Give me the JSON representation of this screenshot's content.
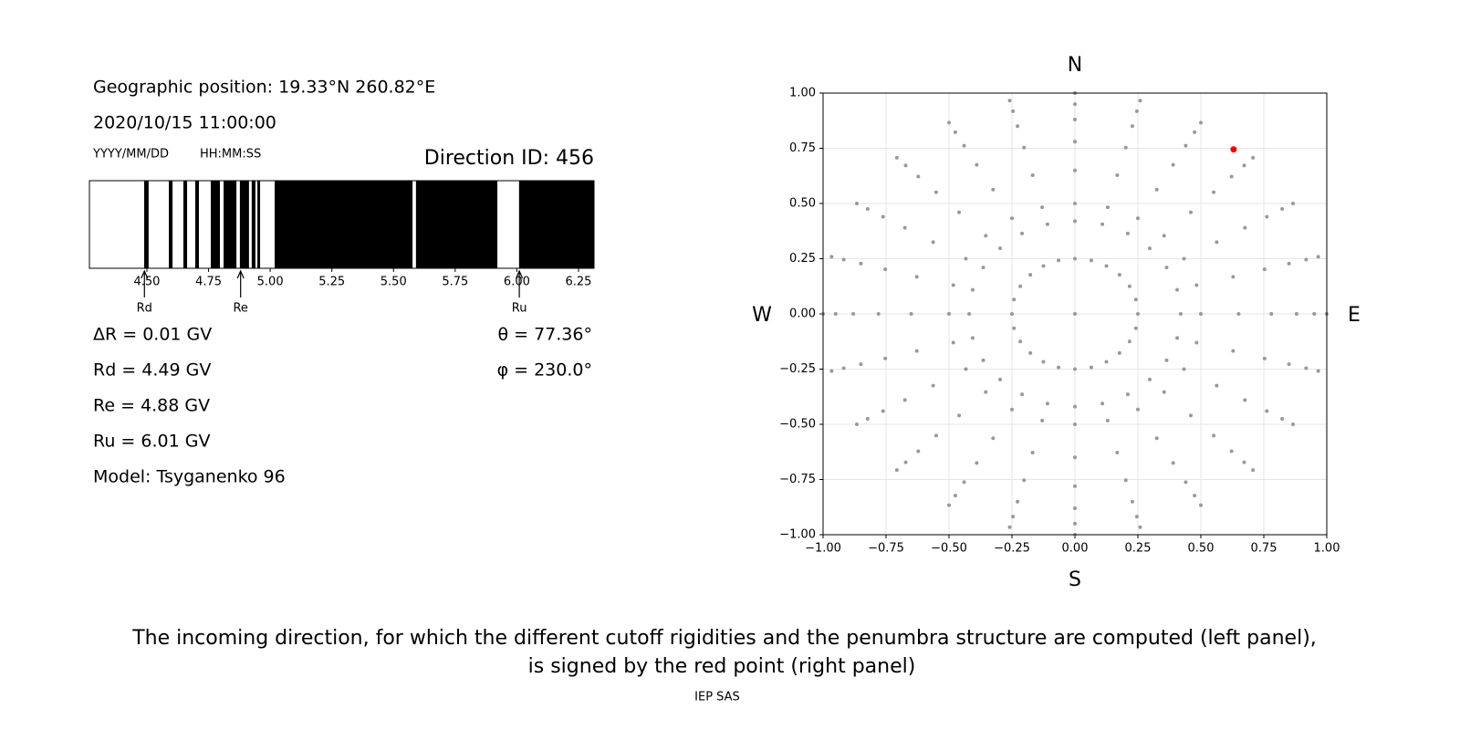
{
  "info": {
    "position": "Geographic position: 19.33°N 260.82°E",
    "datetime": "2020/10/15 11:00:00",
    "date_format": "YYYY/MM/DD",
    "time_format": "HH:MM:SS",
    "direction_id": "Direction ID: 456",
    "results": [
      "ΔR = 0.01 GV",
      "Rd = 4.49 GV",
      "Re = 4.88 GV",
      "Ru = 6.01 GV",
      "Model: Tsyganenko 96"
    ],
    "angles": [
      "θ = 77.36°",
      "φ = 230.0°"
    ]
  },
  "chart_data": [
    {
      "type": "penumbra",
      "xlim": [
        4.267,
        6.313
      ],
      "xticks": [
        {
          "value": 4.5,
          "label": "4.50"
        },
        {
          "value": 4.75,
          "label": "4.75"
        },
        {
          "value": 5,
          "label": "5.00"
        },
        {
          "value": 5.25,
          "label": "5.25"
        },
        {
          "value": 5.5,
          "label": "5.50"
        },
        {
          "value": 5.75,
          "label": "5.75"
        },
        {
          "value": 6,
          "label": "6.00"
        },
        {
          "value": 6.25,
          "label": "6.25"
        }
      ],
      "forbidden_bands": [
        [
          4.489,
          4.507
        ],
        [
          4.589,
          4.604
        ],
        [
          4.648,
          4.663
        ],
        [
          4.696,
          4.711
        ],
        [
          4.759,
          4.796
        ],
        [
          4.811,
          4.863
        ],
        [
          4.877,
          4.914
        ],
        [
          4.925,
          4.94
        ],
        [
          4.948,
          4.959
        ],
        [
          5.018,
          5.577
        ],
        [
          5.591,
          5.921
        ],
        [
          6.009,
          6.313
        ]
      ],
      "color": "#000000",
      "markers": [
        {
          "label": "Rd",
          "value": 4.49
        },
        {
          "label": "Re",
          "value": 4.88
        },
        {
          "label": "Ru",
          "value": 6.01
        }
      ]
    },
    {
      "type": "scatter",
      "xlim": [
        -1,
        1
      ],
      "ylim": [
        -1,
        1
      ],
      "xticks": [
        {
          "value": -1,
          "label": "−1.00"
        },
        {
          "value": -0.75,
          "label": "−0.75"
        },
        {
          "value": -0.5,
          "label": "−0.50"
        },
        {
          "value": -0.25,
          "label": "−0.25"
        },
        {
          "value": 0,
          "label": "0.00"
        },
        {
          "value": 0.25,
          "label": "0.25"
        },
        {
          "value": 0.5,
          "label": "0.50"
        },
        {
          "value": 0.75,
          "label": "0.75"
        },
        {
          "value": 1,
          "label": "1.00"
        }
      ],
      "yticks": [
        {
          "value": -1,
          "label": "−1.00"
        },
        {
          "value": -0.75,
          "label": "−0.75"
        },
        {
          "value": -0.5,
          "label": "−0.50"
        },
        {
          "value": -0.25,
          "label": "−0.25"
        },
        {
          "value": 0,
          "label": "0.00"
        },
        {
          "value": 0.25,
          "label": "0.25"
        },
        {
          "value": 0.5,
          "label": "0.50"
        },
        {
          "value": 0.75,
          "label": "0.75"
        },
        {
          "value": 1,
          "label": "1.00"
        }
      ],
      "grid": true,
      "compass": {
        "north": "N",
        "south": "S",
        "west": "W",
        "east": "E"
      },
      "series": [
        {
          "color": "#999999",
          "x": [
            0
          ],
          "y": [
            0
          ]
        },
        {
          "color": "#999999",
          "x": [
            0.25,
            0.242,
            0.217,
            0.177,
            0.125,
            0.065,
            0,
            -0.065,
            -0.125,
            -0.177,
            -0.217,
            -0.242,
            -0.25,
            -0.242,
            -0.217,
            -0.177,
            -0.125,
            -0.065,
            0,
            0.065,
            0.125,
            0.177,
            0.217,
            0.242
          ],
          "y": [
            0,
            0.065,
            0.125,
            0.177,
            0.217,
            0.242,
            0.25,
            0.242,
            0.217,
            0.177,
            0.125,
            0.065,
            0,
            -0.065,
            -0.125,
            -0.177,
            -0.217,
            -0.242,
            -0.25,
            -0.242,
            -0.217,
            -0.177,
            -0.125,
            -0.065
          ]
        },
        {
          "color": "#999999",
          "x": [
            0.42,
            0.406,
            0.364,
            0.297,
            0.21,
            0.109,
            0,
            -0.109,
            -0.21,
            -0.297,
            -0.364,
            -0.406,
            -0.42,
            -0.406,
            -0.364,
            -0.297,
            -0.21,
            -0.109,
            0,
            0.109,
            0.21,
            0.297,
            0.364,
            0.406
          ],
          "y": [
            0,
            0.109,
            0.21,
            0.297,
            0.364,
            0.406,
            0.42,
            0.406,
            0.364,
            0.297,
            0.21,
            0.109,
            0,
            -0.109,
            -0.21,
            -0.297,
            -0.364,
            -0.406,
            -0.42,
            -0.406,
            -0.364,
            -0.297,
            -0.21,
            -0.109
          ]
        },
        {
          "color": "#999999",
          "x": [
            0.5,
            0.483,
            0.433,
            0.354,
            0.25,
            0.13,
            0,
            -0.13,
            -0.25,
            -0.354,
            -0.433,
            -0.483,
            -0.5,
            -0.483,
            -0.433,
            -0.354,
            -0.25,
            -0.13,
            0,
            0.13,
            0.25,
            0.354,
            0.433,
            0.483
          ],
          "y": [
            0,
            0.13,
            0.25,
            0.354,
            0.433,
            0.483,
            0.5,
            0.483,
            0.433,
            0.354,
            0.25,
            0.13,
            0,
            -0.13,
            -0.25,
            -0.354,
            -0.433,
            -0.483,
            -0.5,
            -0.483,
            -0.433,
            -0.354,
            -0.25,
            -0.13
          ]
        },
        {
          "color": "#999999",
          "x": [
            0.65,
            0.628,
            0.563,
            0.46,
            0.325,
            0.168,
            0,
            -0.168,
            -0.325,
            -0.46,
            -0.563,
            -0.628,
            -0.65,
            -0.628,
            -0.563,
            -0.46,
            -0.325,
            -0.168,
            0,
            0.168,
            0.325,
            0.46,
            0.563,
            0.628
          ],
          "y": [
            0,
            0.168,
            0.325,
            0.46,
            0.563,
            0.628,
            0.65,
            0.628,
            0.563,
            0.46,
            0.325,
            0.168,
            0,
            -0.168,
            -0.325,
            -0.46,
            -0.563,
            -0.628,
            -0.65,
            -0.628,
            -0.563,
            -0.46,
            -0.325,
            -0.168
          ]
        },
        {
          "color": "#999999",
          "x": [
            0.78,
            0.753,
            0.675,
            0.551,
            0.39,
            0.202,
            0,
            -0.202,
            -0.39,
            -0.551,
            -0.675,
            -0.753,
            -0.78,
            -0.753,
            -0.675,
            -0.551,
            -0.39,
            -0.202,
            0,
            0.202,
            0.39,
            0.551,
            0.675,
            0.753
          ],
          "y": [
            0,
            0.202,
            0.39,
            0.551,
            0.675,
            0.753,
            0.78,
            0.753,
            0.675,
            0.551,
            0.39,
            0.202,
            0,
            -0.202,
            -0.39,
            -0.551,
            -0.675,
            -0.753,
            -0.78,
            -0.753,
            -0.675,
            -0.551,
            -0.39,
            -0.202
          ]
        },
        {
          "color": "#999999",
          "x": [
            0.88,
            0.85,
            0.762,
            0.622,
            0.44,
            0.228,
            0,
            -0.228,
            -0.44,
            -0.622,
            -0.762,
            -0.85,
            -0.88,
            -0.85,
            -0.762,
            -0.622,
            -0.44,
            -0.228,
            0,
            0.228,
            0.44,
            0.622,
            0.762,
            0.85
          ],
          "y": [
            0,
            0.228,
            0.44,
            0.622,
            0.762,
            0.85,
            0.88,
            0.85,
            0.762,
            0.622,
            0.44,
            0.228,
            0,
            -0.228,
            -0.44,
            -0.622,
            -0.762,
            -0.85,
            -0.88,
            -0.85,
            -0.762,
            -0.622,
            -0.44,
            -0.228
          ]
        },
        {
          "color": "#999999",
          "x": [
            0.95,
            0.918,
            0.823,
            0.672,
            0.475,
            0.246,
            0,
            -0.246,
            -0.475,
            -0.672,
            -0.823,
            -0.918,
            -0.95,
            -0.918,
            -0.823,
            -0.672,
            -0.475,
            -0.246,
            0,
            0.246,
            0.475,
            0.672,
            0.823,
            0.918
          ],
          "y": [
            0,
            0.246,
            0.475,
            0.672,
            0.823,
            0.918,
            0.95,
            0.918,
            0.823,
            0.672,
            0.475,
            0.246,
            0,
            -0.246,
            -0.475,
            -0.672,
            -0.823,
            -0.918,
            -0.95,
            -0.918,
            -0.823,
            -0.672,
            -0.475,
            -0.246
          ]
        },
        {
          "color": "#999999",
          "x": [
            1,
            0.966,
            0.866,
            0.707,
            0.5,
            0.259,
            0,
            -0.259,
            -0.5,
            -0.707,
            -0.866,
            -0.966,
            -1,
            -0.966,
            -0.866,
            -0.707,
            -0.5,
            -0.259,
            0,
            0.259,
            0.5,
            0.707,
            0.866,
            0.966
          ],
          "y": [
            0,
            0.259,
            0.5,
            0.707,
            0.866,
            0.966,
            1,
            0.966,
            0.866,
            0.707,
            0.5,
            0.259,
            0,
            -0.259,
            -0.5,
            -0.707,
            -0.866,
            -0.966,
            -1,
            -0.966,
            -0.866,
            -0.707,
            -0.5,
            -0.259
          ]
        },
        {
          "color": "#ee0000",
          "x": [
            0.63
          ],
          "y": [
            0.745
          ]
        }
      ]
    }
  ],
  "caption": [
    "The incoming direction, for which the different cutoff rigidities and the penumbra structure are computed (left panel),",
    "is signed by the red point (right panel)"
  ],
  "footer": "IEP SAS"
}
